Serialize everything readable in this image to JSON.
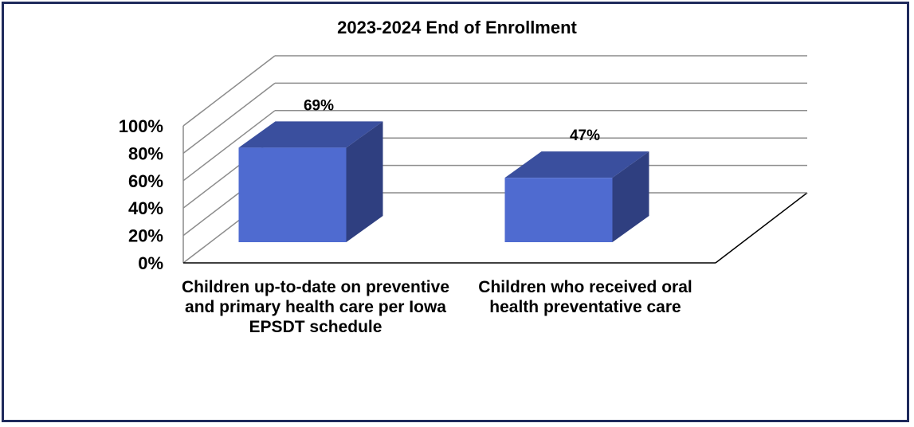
{
  "chart_data": {
    "type": "bar",
    "title": "2023-2024 End of Enrollment",
    "categories": [
      "Children up-to-date on preventive and primary health care per Iowa EPSDT schedule",
      "Children who received oral health preventative care"
    ],
    "series": [
      {
        "values": [
          69,
          47
        ]
      }
    ],
    "data_labels": [
      "69%",
      "47%"
    ],
    "yticks": [
      "0%",
      "20%",
      "40%",
      "60%",
      "80%",
      "100%"
    ],
    "ylim": [
      0,
      100
    ],
    "grid": true,
    "three_d": true,
    "bar_color": "#4f6bd0"
  }
}
